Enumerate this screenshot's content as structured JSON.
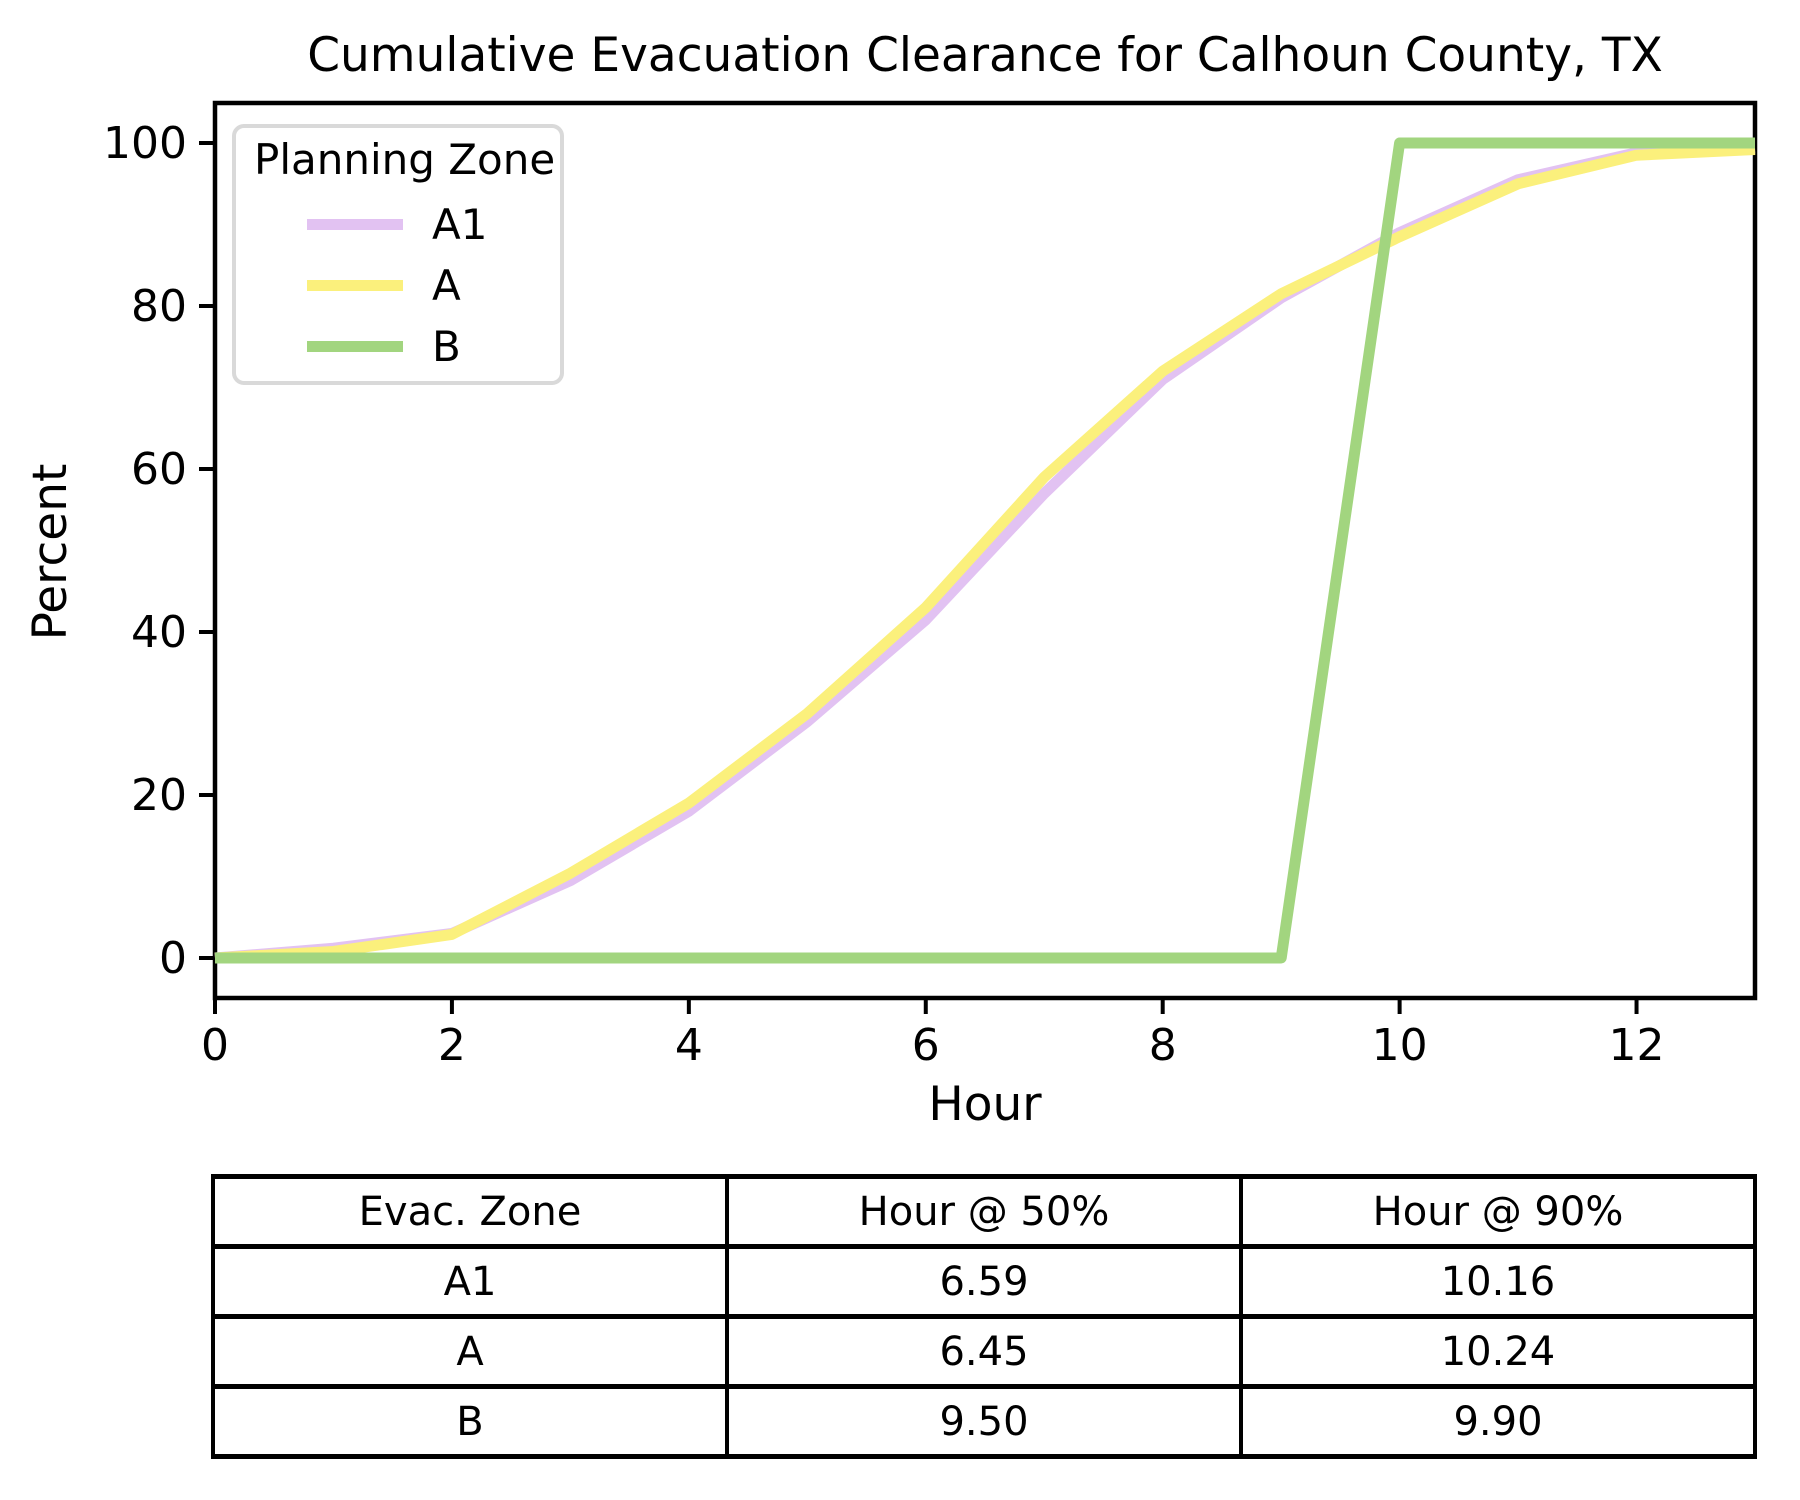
{
  "chart_data": {
    "type": "line",
    "title": "Cumulative Evacuation Clearance for Calhoun County, TX",
    "xlabel": "Hour",
    "ylabel": "Percent",
    "xlim": [
      0,
      13
    ],
    "ylim": [
      -5,
      105
    ],
    "xticks": [
      0,
      2,
      4,
      6,
      8,
      10,
      12
    ],
    "yticks": [
      0,
      20,
      40,
      60,
      80,
      100
    ],
    "grid": false,
    "legend": {
      "title": "Planning Zone",
      "position": "upper left"
    },
    "x": [
      0,
      1,
      2,
      3,
      4,
      5,
      6,
      7,
      8,
      9,
      10,
      11,
      12,
      13
    ],
    "series": [
      {
        "name": "A1",
        "color": "#e2c2f2",
        "values": [
          0,
          1.2,
          3.0,
          9.5,
          18,
          29,
          41.5,
          57,
          71,
          81,
          89,
          95.5,
          98.8,
          99.4
        ]
      },
      {
        "name": "A",
        "color": "#fbf07c",
        "values": [
          0,
          0.8,
          2.9,
          10.4,
          19,
          30,
          43,
          59,
          72,
          81.5,
          88.5,
          95,
          98.5,
          99.2
        ]
      },
      {
        "name": "B",
        "color": "#a2d57f",
        "values": [
          0,
          0,
          0,
          0,
          0,
          0,
          0,
          0,
          0,
          0,
          100,
          100,
          100,
          100
        ]
      }
    ]
  },
  "table": {
    "headers": [
      "Evac. Zone",
      "Hour @ 50%",
      "Hour @ 90%"
    ],
    "rows": [
      [
        "A1",
        "6.59",
        "10.16"
      ],
      [
        "A",
        "6.45",
        "10.24"
      ],
      [
        "B",
        "9.50",
        "9.90"
      ]
    ]
  },
  "colors": {
    "axis": "#000000",
    "legend_border": "#d9d9d9",
    "background": "#ffffff"
  }
}
